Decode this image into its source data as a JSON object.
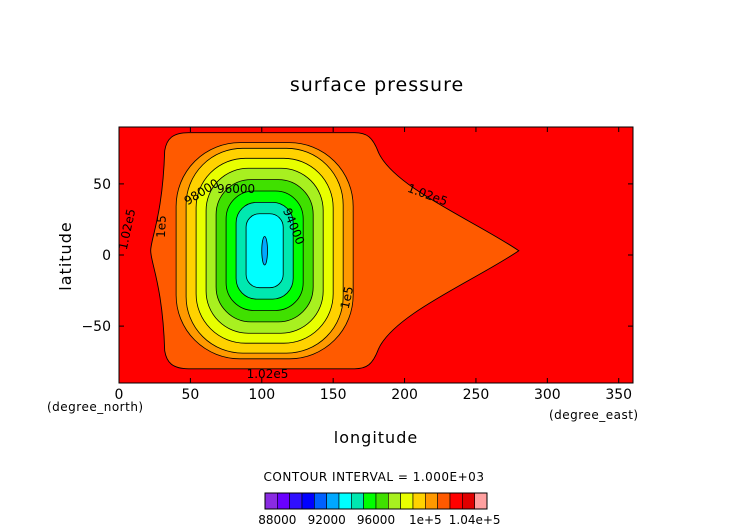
{
  "chart_data": {
    "type": "heatmap",
    "title": "surface pressure",
    "xlabel": "longitude",
    "ylabel": "latitude",
    "x_unit": "(degree_east)",
    "y_unit": "(degree_north)",
    "xlim": [
      0,
      360
    ],
    "ylim": [
      -90,
      90
    ],
    "x_ticks": [
      "0",
      "50",
      "100",
      "150",
      "200",
      "250",
      "300",
      "350"
    ],
    "y_ticks": [
      "50",
      "0",
      "−50"
    ],
    "x_tick_values": [
      0,
      50,
      100,
      150,
      200,
      250,
      300,
      350
    ],
    "y_tick_values": [
      50,
      0,
      -50
    ],
    "contour_interval_text": "CONTOUR INTERVAL = 1.000E+03",
    "contour_interval": 1000,
    "low_center": {
      "lon": 102,
      "lat": 3
    },
    "contours": [
      {
        "level": 102000,
        "half_width_lon": 70,
        "half_height_lat": 83,
        "label": "1.02e5"
      },
      {
        "level": 101000,
        "half_width_lon": 62,
        "half_height_lat": 76,
        "label": ""
      },
      {
        "level": 100000,
        "half_width_lon": 55,
        "half_height_lat": 72,
        "label": "1e5"
      },
      {
        "level": 99000,
        "half_width_lon": 48,
        "half_height_lat": 65,
        "label": ""
      },
      {
        "level": 98000,
        "half_width_lon": 41,
        "half_height_lat": 58,
        "label": "98000"
      },
      {
        "level": 97000,
        "half_width_lon": 34,
        "half_height_lat": 50,
        "label": ""
      },
      {
        "level": 96000,
        "half_width_lon": 27,
        "half_height_lat": 42,
        "label": "96000"
      },
      {
        "level": 95000,
        "half_width_lon": 20,
        "half_height_lat": 34,
        "label": ""
      },
      {
        "level": 94000,
        "half_width_lon": 13,
        "half_height_lat": 26,
        "label": "94000"
      },
      {
        "level": 93000,
        "half_width_lon": 2,
        "half_height_lat": 10,
        "label": ""
      }
    ],
    "contour_labels": [
      {
        "text": "1.02e5",
        "lon": 6,
        "lat": 18,
        "rotate": -78
      },
      {
        "text": "1e5",
        "lon": 30,
        "lat": 20,
        "rotate": -88
      },
      {
        "text": "98000",
        "lon": 58,
        "lat": 44,
        "rotate": -32
      },
      {
        "text": "96000",
        "lon": 82,
        "lat": 46,
        "rotate": 0
      },
      {
        "text": "94000",
        "lon": 122,
        "lat": 20,
        "rotate": 68
      },
      {
        "text": "1e5",
        "lon": 160,
        "lat": -30,
        "rotate": -78
      },
      {
        "text": "1.02e5",
        "lon": 216,
        "lat": 42,
        "rotate": 20
      },
      {
        "text": "1.02e5",
        "lon": 104,
        "lat": -84,
        "rotate": 0
      }
    ],
    "colorbar": {
      "labels": [
        "88000",
        "92000",
        "96000",
        "1e+5",
        "1.04e+5"
      ],
      "label_values": [
        88000,
        92000,
        96000,
        100000,
        104000
      ],
      "bins": [
        {
          "min": 87000,
          "max": 88000,
          "color": "#8a2be2"
        },
        {
          "min": 88000,
          "max": 89000,
          "color": "#6a00ff"
        },
        {
          "min": 89000,
          "max": 90000,
          "color": "#3010ff"
        },
        {
          "min": 90000,
          "max": 91000,
          "color": "#0000ff"
        },
        {
          "min": 91000,
          "max": 92000,
          "color": "#0060ff"
        },
        {
          "min": 92000,
          "max": 93000,
          "color": "#00a8ff"
        },
        {
          "min": 93000,
          "max": 94000,
          "color": "#00ffff"
        },
        {
          "min": 94000,
          "max": 95000,
          "color": "#00e8b0"
        },
        {
          "min": 95000,
          "max": 96000,
          "color": "#00ff00"
        },
        {
          "min": 96000,
          "max": 97000,
          "color": "#40e000"
        },
        {
          "min": 97000,
          "max": 98000,
          "color": "#a8f020"
        },
        {
          "min": 98000,
          "max": 99000,
          "color": "#e8ff00"
        },
        {
          "min": 99000,
          "max": 100000,
          "color": "#ffd200"
        },
        {
          "min": 100000,
          "max": 101000,
          "color": "#ff9900"
        },
        {
          "min": 101000,
          "max": 102000,
          "color": "#ff5a00"
        },
        {
          "min": 102000,
          "max": 103000,
          "color": "#ff0000"
        },
        {
          "min": 103000,
          "max": 104000,
          "color": "#e00000"
        },
        {
          "min": 104000,
          "max": 105000,
          "color": "#ffa0a0"
        }
      ]
    },
    "background_color": "#ff0000"
  }
}
